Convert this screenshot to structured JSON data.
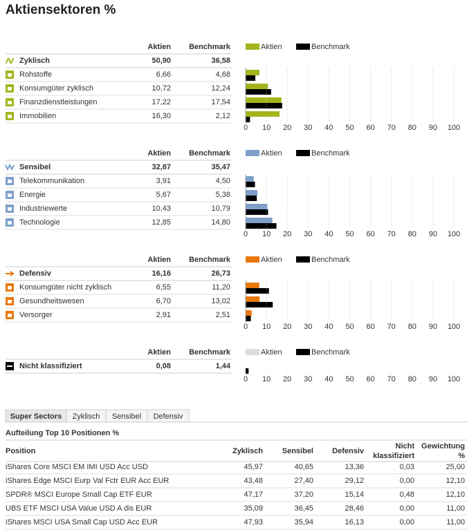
{
  "title": "Aktiensektoren %",
  "groups": [
    {
      "columns": [
        "Aktien",
        "Benchmark"
      ],
      "name": "Zyklisch",
      "total": {
        "values": [
          50.9,
          36.58
        ],
        "value_labels": [
          "50,90",
          "36,58"
        ]
      },
      "rows": [
        {
          "name": "Rohstoffe",
          "values": [
            6.66,
            4.68
          ],
          "value_labels": [
            "6,66",
            "4,68"
          ]
        },
        {
          "name": "Konsumgüter zyklisch",
          "values": [
            10.72,
            12.24
          ],
          "value_labels": [
            "10,72",
            "12,24"
          ]
        },
        {
          "name": "Finanzdienstleistungen",
          "values": [
            17.22,
            17.54
          ],
          "value_labels": [
            "17,22",
            "17,54"
          ]
        },
        {
          "name": "Immobilien",
          "values": [
            16.3,
            2.12
          ],
          "value_labels": [
            "16,30",
            "2,12"
          ]
        }
      ],
      "series": [
        {
          "name": "Aktien",
          "color": "#a3b51b"
        },
        {
          "name": "Benchmark",
          "color": "#000000"
        }
      ],
      "xlim": [
        0,
        100
      ],
      "xticks": [
        0,
        10,
        20,
        30,
        40,
        50,
        60,
        70,
        80,
        90,
        100
      ]
    },
    {
      "columns": [
        "Aktien",
        "Benchmark"
      ],
      "name": "Sensibel",
      "total": {
        "values": [
          32.87,
          35.47
        ],
        "value_labels": [
          "32,87",
          "35,47"
        ]
      },
      "rows": [
        {
          "name": "Telekommunikation",
          "values": [
            3.91,
            4.5
          ],
          "value_labels": [
            "3,91",
            "4,50"
          ]
        },
        {
          "name": "Energie",
          "values": [
            5.67,
            5.38
          ],
          "value_labels": [
            "5,67",
            "5,38"
          ]
        },
        {
          "name": "Industriewerte",
          "values": [
            10.43,
            10.79
          ],
          "value_labels": [
            "10,43",
            "10,79"
          ]
        },
        {
          "name": "Technologie",
          "values": [
            12.85,
            14.8
          ],
          "value_labels": [
            "12,85",
            "14,80"
          ]
        }
      ],
      "series": [
        {
          "name": "Aktien",
          "color": "#7f9fca"
        },
        {
          "name": "Benchmark",
          "color": "#000000"
        }
      ],
      "xlim": [
        0,
        100
      ],
      "xticks": [
        0,
        10,
        20,
        30,
        40,
        50,
        60,
        70,
        80,
        90,
        100
      ]
    },
    {
      "columns": [
        "Aktien",
        "Benchmark"
      ],
      "name": "Defensiv",
      "total": {
        "values": [
          16.16,
          26.73
        ],
        "value_labels": [
          "16,16",
          "26,73"
        ]
      },
      "rows": [
        {
          "name": "Konsumgüter nicht zyklisch",
          "values": [
            6.55,
            11.2
          ],
          "value_labels": [
            "6,55",
            "11,20"
          ]
        },
        {
          "name": "Gesundheitswesen",
          "values": [
            6.7,
            13.02
          ],
          "value_labels": [
            "6,70",
            "13,02"
          ]
        },
        {
          "name": "Versorger",
          "values": [
            2.91,
            2.51
          ],
          "value_labels": [
            "2,91",
            "2,51"
          ]
        }
      ],
      "series": [
        {
          "name": "Aktien",
          "color": "#e8780c"
        },
        {
          "name": "Benchmark",
          "color": "#000000"
        }
      ],
      "xlim": [
        0,
        100
      ],
      "xticks": [
        0,
        10,
        20,
        30,
        40,
        50,
        60,
        70,
        80,
        90,
        100
      ]
    },
    {
      "columns": [
        "Aktien",
        "Benchmark"
      ],
      "name": "Nicht klassifiziert",
      "total": {
        "values": [
          0.08,
          1.44
        ],
        "value_labels": [
          "0,08",
          "1,44"
        ]
      },
      "rows": [],
      "series": [
        {
          "name": "Aktien",
          "color": "#dddddd"
        },
        {
          "name": "Benchmark",
          "color": "#000000"
        }
      ],
      "xlim": [
        0,
        100
      ],
      "xticks": [
        0,
        10,
        20,
        30,
        40,
        50,
        60,
        70,
        80,
        90,
        100
      ]
    }
  ],
  "tabs": [
    "Super Sectors",
    "Zyklisch",
    "Sensibel",
    "Defensiv"
  ],
  "positions": {
    "title": "Aufteilung Top 10 Positionen %",
    "headers": [
      "Position",
      "Zyklisch",
      "Sensibel",
      "Defensiv",
      "Nicht klassifiziert",
      "Gewichtung %"
    ],
    "rows": [
      [
        "iShares Core MSCI EM IMI USD Acc USD",
        "45,97",
        "40,65",
        "13,36",
        "0,03",
        "25,00"
      ],
      [
        "iShares Edge MSCI Eurp Val Fctr EUR Acc EUR",
        "43,48",
        "27,40",
        "29,12",
        "0,00",
        "12,10"
      ],
      [
        "SPDR® MSCI Europe Small Cap ETF EUR",
        "47,17",
        "37,20",
        "15,14",
        "0,48",
        "12,10"
      ],
      [
        "UBS ETF MSCI USA Value USD A dis EUR",
        "35,09",
        "36,45",
        "28,46",
        "0,00",
        "11,00"
      ],
      [
        "iShares MSCI USA Small Cap USD Acc EUR",
        "47,93",
        "35,94",
        "16,13",
        "0,00",
        "11,00"
      ]
    ]
  }
}
